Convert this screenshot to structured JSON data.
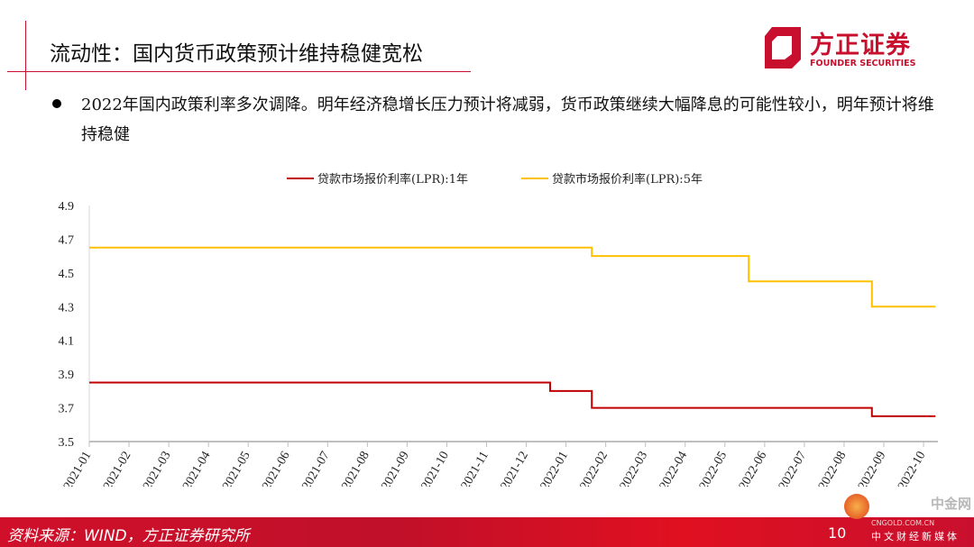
{
  "header": {
    "title": "流动性：国内货币政策预计维持稳健宽松"
  },
  "logo": {
    "cn": "方正证券",
    "en": "FOUNDER SECURITIES"
  },
  "body": {
    "text": "2022年国内政策利率多次调降。明年经济稳增长压力预计将减弱，货币政策继续大幅降息的可能性较小，明年预计将维持稳健"
  },
  "footer": {
    "source": "资料来源：WIND，方正证券研究所",
    "page": "10"
  },
  "watermark": {
    "cn": "中金网",
    "en": "CNGOLD.COM.CN",
    "sub": "中文财经新媒体"
  },
  "chart_data": {
    "type": "line",
    "step": true,
    "categories": [
      "2021-01",
      "2021-02",
      "2021-03",
      "2021-04",
      "2021-05",
      "2021-06",
      "2021-07",
      "2021-08",
      "2021-09",
      "2021-10",
      "2021-11",
      "2021-12",
      "2022-01",
      "2022-02",
      "2022-03",
      "2022-04",
      "2022-05",
      "2022-06",
      "2022-07",
      "2022-08",
      "2022-09",
      "2022-10"
    ],
    "yticks": [
      "3.5",
      "3.7",
      "3.9",
      "4.1",
      "4.3",
      "4.5",
      "4.7",
      "4.9"
    ],
    "ylim": [
      3.5,
      4.9
    ],
    "legend_position": "top",
    "series": [
      {
        "name": "贷款市场报价利率(LPR):1年",
        "color": "#c00000",
        "points": [
          [
            0,
            3.85
          ],
          [
            11.6,
            3.85
          ],
          [
            11.6,
            3.8
          ],
          [
            12.65,
            3.8
          ],
          [
            12.65,
            3.7
          ],
          [
            19.7,
            3.7
          ],
          [
            19.7,
            3.65
          ],
          [
            21.3,
            3.65
          ]
        ]
      },
      {
        "name": "贷款市场报价利率(LPR):5年",
        "color": "#ffc000",
        "points": [
          [
            0,
            4.65
          ],
          [
            12.65,
            4.65
          ],
          [
            12.65,
            4.6
          ],
          [
            16.6,
            4.6
          ],
          [
            16.6,
            4.45
          ],
          [
            19.7,
            4.45
          ],
          [
            19.7,
            4.3
          ],
          [
            21.3,
            4.3
          ]
        ]
      }
    ]
  }
}
